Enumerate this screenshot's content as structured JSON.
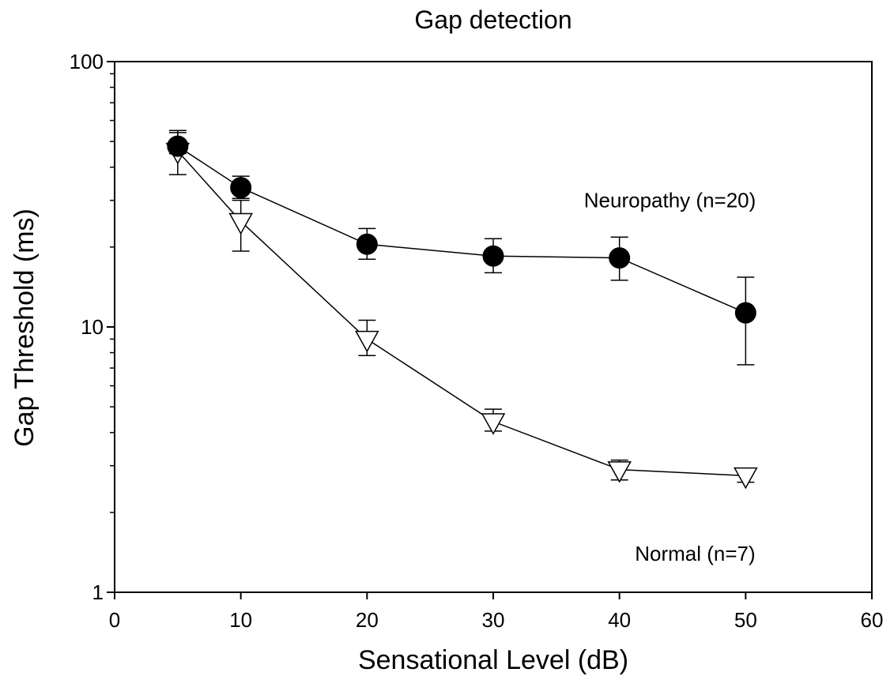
{
  "chart_data": {
    "type": "line",
    "title": "Gap detection",
    "xlabel": "Sensational Level (dB)",
    "ylabel": "Gap Threshold (ms)",
    "xlim": [
      0,
      60
    ],
    "ylim": [
      1,
      100
    ],
    "yscale": "log",
    "x_ticks": [
      0,
      10,
      20,
      30,
      40,
      50,
      60
    ],
    "x_tick_labels": [
      "0",
      "10",
      "20",
      "30",
      "40",
      "50",
      "60"
    ],
    "y_ticks": [
      1,
      10,
      100
    ],
    "y_tick_labels": [
      "1",
      "10",
      "100"
    ],
    "y_minor_ticks": [
      2,
      3,
      4,
      5,
      6,
      7,
      8,
      9,
      20,
      30,
      40,
      50,
      60,
      70,
      80,
      90
    ],
    "grid": false,
    "legend": "none",
    "series": [
      {
        "name": "Neuropathy (n=20)",
        "marker": "filled-circle",
        "color": "#000000",
        "points": [
          {
            "x": 5,
            "y": 48.0,
            "err_low": 45.0,
            "err_high": 54.0
          },
          {
            "x": 10,
            "y": 33.5,
            "err_low": 30.5,
            "err_high": 37.0
          },
          {
            "x": 20,
            "y": 20.5,
            "err_low": 18.0,
            "err_high": 23.5
          },
          {
            "x": 30,
            "y": 18.5,
            "err_low": 16.0,
            "err_high": 21.5
          },
          {
            "x": 40,
            "y": 18.2,
            "err_low": 15.0,
            "err_high": 21.8
          },
          {
            "x": 50,
            "y": 11.3,
            "err_low": 7.2,
            "err_high": 15.4
          }
        ]
      },
      {
        "name": "Normal (n=7)",
        "marker": "open-triangle-down",
        "color": "#000000",
        "points": [
          {
            "x": 5,
            "y": 46.0,
            "err_low": 37.5,
            "err_high": 55.0
          },
          {
            "x": 10,
            "y": 25.0,
            "err_low": 19.3,
            "err_high": 30.0
          },
          {
            "x": 20,
            "y": 9.0,
            "err_low": 7.8,
            "err_high": 10.6
          },
          {
            "x": 30,
            "y": 4.4,
            "err_low": 4.05,
            "err_high": 4.9
          },
          {
            "x": 40,
            "y": 2.9,
            "err_low": 2.65,
            "err_high": 3.15
          },
          {
            "x": 50,
            "y": 2.75,
            "err_low": 2.6,
            "err_high": 2.9
          }
        ]
      }
    ],
    "annotations": [
      {
        "text": "Neuropathy (n=20)",
        "x": 44,
        "y": 30
      },
      {
        "text": "Normal (n=7)",
        "x": 46,
        "y": 1.4
      }
    ]
  }
}
